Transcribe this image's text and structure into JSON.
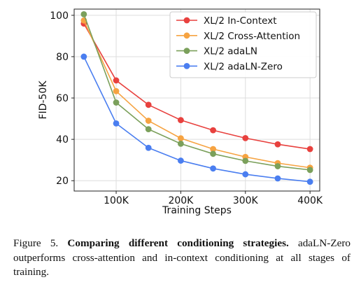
{
  "chart_data": {
    "type": "line",
    "xlabel": "Training Steps",
    "ylabel": "FID-50K",
    "x": [
      50000,
      100000,
      150000,
      200000,
      250000,
      300000,
      350000,
      400000
    ],
    "xlim": [
      35000,
      415000
    ],
    "ylim": [
      15,
      103
    ],
    "x_ticks": [
      100000,
      200000,
      300000,
      400000
    ],
    "x_tick_labels": [
      "100K",
      "200K",
      "300K",
      "400K"
    ],
    "y_ticks": [
      20,
      40,
      60,
      80,
      100
    ],
    "y_tick_labels": [
      "20",
      "40",
      "60",
      "80",
      "100"
    ],
    "grid": true,
    "legend_position": "top-right",
    "series": [
      {
        "name": "XL/2 In-Context",
        "color": "#e8413e",
        "values": [
          96,
          68.5,
          56.7,
          49.3,
          44.4,
          40.6,
          37.6,
          35.3
        ]
      },
      {
        "name": "XL/2 Cross-Attention",
        "color": "#f6a341",
        "values": [
          97.5,
          63.3,
          49,
          40.5,
          35.3,
          31.5,
          28.5,
          26.3
        ]
      },
      {
        "name": "XL/2 adaLN",
        "color": "#7ba05b",
        "values": [
          100.5,
          57.8,
          44.9,
          37.9,
          33,
          29.6,
          27,
          25.2
        ]
      },
      {
        "name": "XL/2 adaLN-Zero",
        "color": "#4a7ef0",
        "values": [
          80,
          47.7,
          35.9,
          29.7,
          25.9,
          23.1,
          21.1,
          19.5
        ]
      }
    ]
  },
  "caption": {
    "figure_label": "Figure 5.",
    "bold_title": "Comparing different conditioning strategies.",
    "body": "adaLN-Zero outperforms cross-attention and in-context conditioning at all stages of training."
  }
}
